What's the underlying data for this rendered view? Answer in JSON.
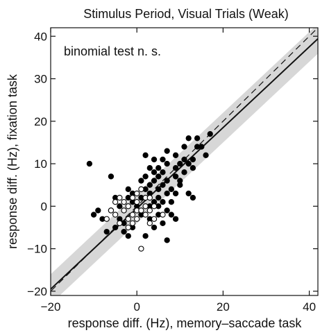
{
  "chart_data": {
    "type": "scatter",
    "title": "Stimulus Period, Visual Trials (Weak)",
    "xlabel": "response diff. (Hz), memory–saccade task",
    "ylabel": "response diff. (Hz), fixation task",
    "annotation": "binomial test n. s.",
    "xlim": [
      -20,
      42
    ],
    "ylim": [
      -21,
      42
    ],
    "xticks": [
      -20,
      0,
      20,
      40
    ],
    "xtick_labels": [
      "−20",
      "0",
      "20",
      "40"
    ],
    "yticks": [
      -20,
      -10,
      0,
      10,
      20,
      30,
      40
    ],
    "ytick_labels": [
      "−20",
      "−10",
      "0",
      "10",
      "20",
      "30",
      "40"
    ],
    "grid": false,
    "colors": {
      "filled": "#000000",
      "open_fill": "#ffffff",
      "band": "#bdbdbd"
    },
    "reference_line": {
      "style": "dashed",
      "slope": 1,
      "intercept": 0
    },
    "fit_line": {
      "style": "solid",
      "slope": 0.95,
      "intercept": -0.5
    },
    "confidence_band": {
      "halfwidth": 3.5
    },
    "series": [
      {
        "marker": "filled-circle",
        "points": [
          [
            -11,
            10
          ],
          [
            -10,
            -2
          ],
          [
            -9,
            -1
          ],
          [
            -8,
            -3
          ],
          [
            -7,
            -6
          ],
          [
            -6,
            7
          ],
          [
            -6,
            -1
          ],
          [
            -5,
            2
          ],
          [
            -5,
            -5
          ],
          [
            -4,
            -3
          ],
          [
            -3,
            -6
          ],
          [
            -3,
            -4
          ],
          [
            -2,
            -7
          ],
          [
            -2,
            4
          ],
          [
            -2,
            2
          ],
          [
            -1,
            -5
          ],
          [
            -1,
            1
          ],
          [
            -1,
            3
          ],
          [
            0,
            0
          ],
          [
            1,
            2
          ],
          [
            1,
            -2
          ],
          [
            1,
            6
          ],
          [
            2,
            4
          ],
          [
            2,
            12
          ],
          [
            2,
            -7
          ],
          [
            3,
            5
          ],
          [
            3,
            0
          ],
          [
            3,
            -3
          ],
          [
            3,
            3
          ],
          [
            4,
            6
          ],
          [
            4,
            8
          ],
          [
            4,
            11
          ],
          [
            4,
            1
          ],
          [
            4,
            -5
          ],
          [
            5,
            4
          ],
          [
            5,
            7
          ],
          [
            5,
            9
          ],
          [
            5,
            2
          ],
          [
            5,
            -2
          ],
          [
            5,
            0
          ],
          [
            6,
            5
          ],
          [
            6,
            8
          ],
          [
            6,
            1
          ],
          [
            6,
            -4
          ],
          [
            7,
            10
          ],
          [
            7,
            13
          ],
          [
            7,
            6
          ],
          [
            7,
            3
          ],
          [
            7,
            -1
          ],
          [
            7,
            -8
          ],
          [
            8,
            4
          ],
          [
            8,
            1
          ],
          [
            8,
            -2
          ],
          [
            9,
            12
          ],
          [
            9,
            9
          ],
          [
            9,
            7
          ],
          [
            9,
            3
          ],
          [
            9,
            -3
          ],
          [
            10,
            10
          ],
          [
            10,
            6
          ],
          [
            10,
            5
          ],
          [
            11,
            14
          ],
          [
            11,
            11
          ],
          [
            12,
            16
          ],
          [
            12,
            10
          ],
          [
            12,
            3
          ],
          [
            13,
            2
          ],
          [
            13,
            9
          ],
          [
            14,
            16
          ],
          [
            14,
            14
          ],
          [
            15,
            14
          ],
          [
            16,
            12
          ],
          [
            17,
            17
          ],
          [
            13,
            11
          ],
          [
            11,
            8
          ],
          [
            3,
            9
          ],
          [
            2,
            7
          ],
          [
            6,
            11
          ],
          [
            -4,
            0
          ]
        ]
      },
      {
        "marker": "open-circle",
        "points": [
          [
            -7,
            -3
          ],
          [
            -6,
            -1
          ],
          [
            -5,
            -2
          ],
          [
            -5,
            1
          ],
          [
            -4,
            -4
          ],
          [
            -3,
            -1
          ],
          [
            -3,
            1
          ],
          [
            -2,
            0
          ],
          [
            -2,
            -3
          ],
          [
            -1,
            2
          ],
          [
            -1,
            -2
          ],
          [
            0,
            3
          ],
          [
            0,
            -1
          ],
          [
            0,
            1
          ],
          [
            1,
            4
          ],
          [
            1,
            -1
          ],
          [
            1,
            -10
          ],
          [
            2,
            2
          ],
          [
            2,
            0
          ],
          [
            2,
            -2
          ],
          [
            3,
            -1
          ],
          [
            3,
            2
          ],
          [
            4,
            0
          ],
          [
            4,
            -3
          ],
          [
            -4,
            2
          ],
          [
            -1,
            -4
          ],
          [
            6,
            -2
          ],
          [
            3,
            -4
          ],
          [
            -2,
            -5
          ],
          [
            0,
            -3
          ]
        ]
      }
    ]
  }
}
